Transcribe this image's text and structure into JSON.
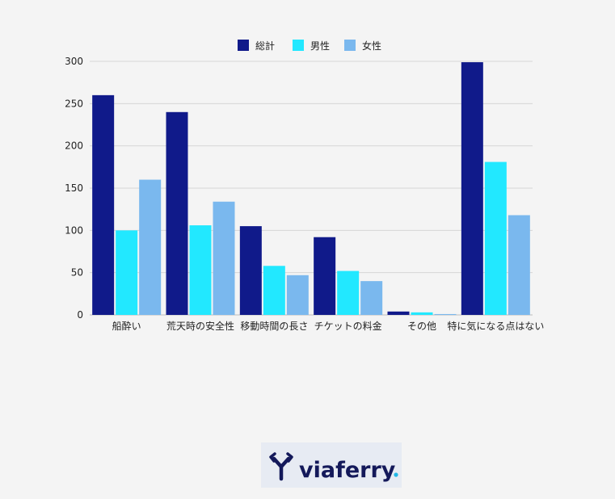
{
  "chart_data": {
    "type": "bar",
    "categories": [
      "船酔い",
      "荒天時の安全性",
      "移動時間の長さ",
      "チケットの料金",
      "その他",
      "特に気になる点はない"
    ],
    "series": [
      {
        "name": "総計",
        "color": "#101a8a",
        "values": [
          260,
          240,
          105,
          92,
          4,
          299
        ]
      },
      {
        "name": "男性",
        "color": "#22e8ff",
        "values": [
          100,
          106,
          58,
          52,
          3,
          181
        ]
      },
      {
        "name": "女性",
        "color": "#7ab8ee",
        "values": [
          160,
          134,
          47,
          40,
          1,
          118
        ]
      }
    ],
    "title": "",
    "xlabel": "",
    "ylabel": "",
    "ylim": [
      0,
      300
    ],
    "yticks": [
      0,
      50,
      100,
      150,
      200,
      250,
      300
    ],
    "grid": true,
    "legend_position": "top-center"
  },
  "logo": {
    "text": "viaferry",
    "icon": "viaferry-arrow-mark-icon",
    "text_color": "#14195a",
    "dot_color": "#22b8e6"
  }
}
